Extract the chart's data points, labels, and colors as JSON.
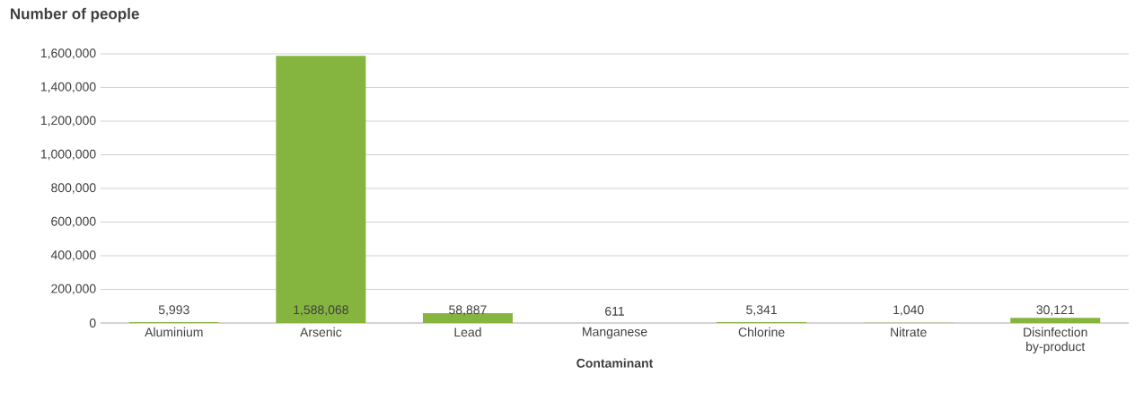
{
  "chart_data": {
    "type": "bar",
    "ylabel": "Number of people",
    "xlabel": "Contaminant",
    "categories": [
      "Aluminium",
      "Arsenic",
      "Lead",
      "Manganese",
      "Chlorine",
      "Nitrate",
      "Disinfection by-product"
    ],
    "values": [
      5993,
      1588068,
      58887,
      611,
      5341,
      1040,
      30121
    ],
    "value_labels": [
      "5,993",
      "1,588,068",
      "58,887",
      "611",
      "5,341",
      "1,040",
      "30,121"
    ],
    "color": "#86b53f",
    "ylim": [
      0,
      1600000
    ],
    "yticks": [
      0,
      {
        "value": 200000,
        "label": "200,000"
      },
      {
        "value": 400000,
        "label": "400,000"
      },
      {
        "value": 600000,
        "label": "600,000"
      },
      {
        "value": 800000,
        "label": "800,000"
      },
      {
        "value": 1000000,
        "label": "1,000,000"
      },
      {
        "value": 1200000,
        "label": "1,200,000"
      },
      {
        "value": 1400000,
        "label": "1,400,000"
      },
      {
        "value": 1600000,
        "label": "1,600,000"
      }
    ],
    "grid": "y"
  }
}
